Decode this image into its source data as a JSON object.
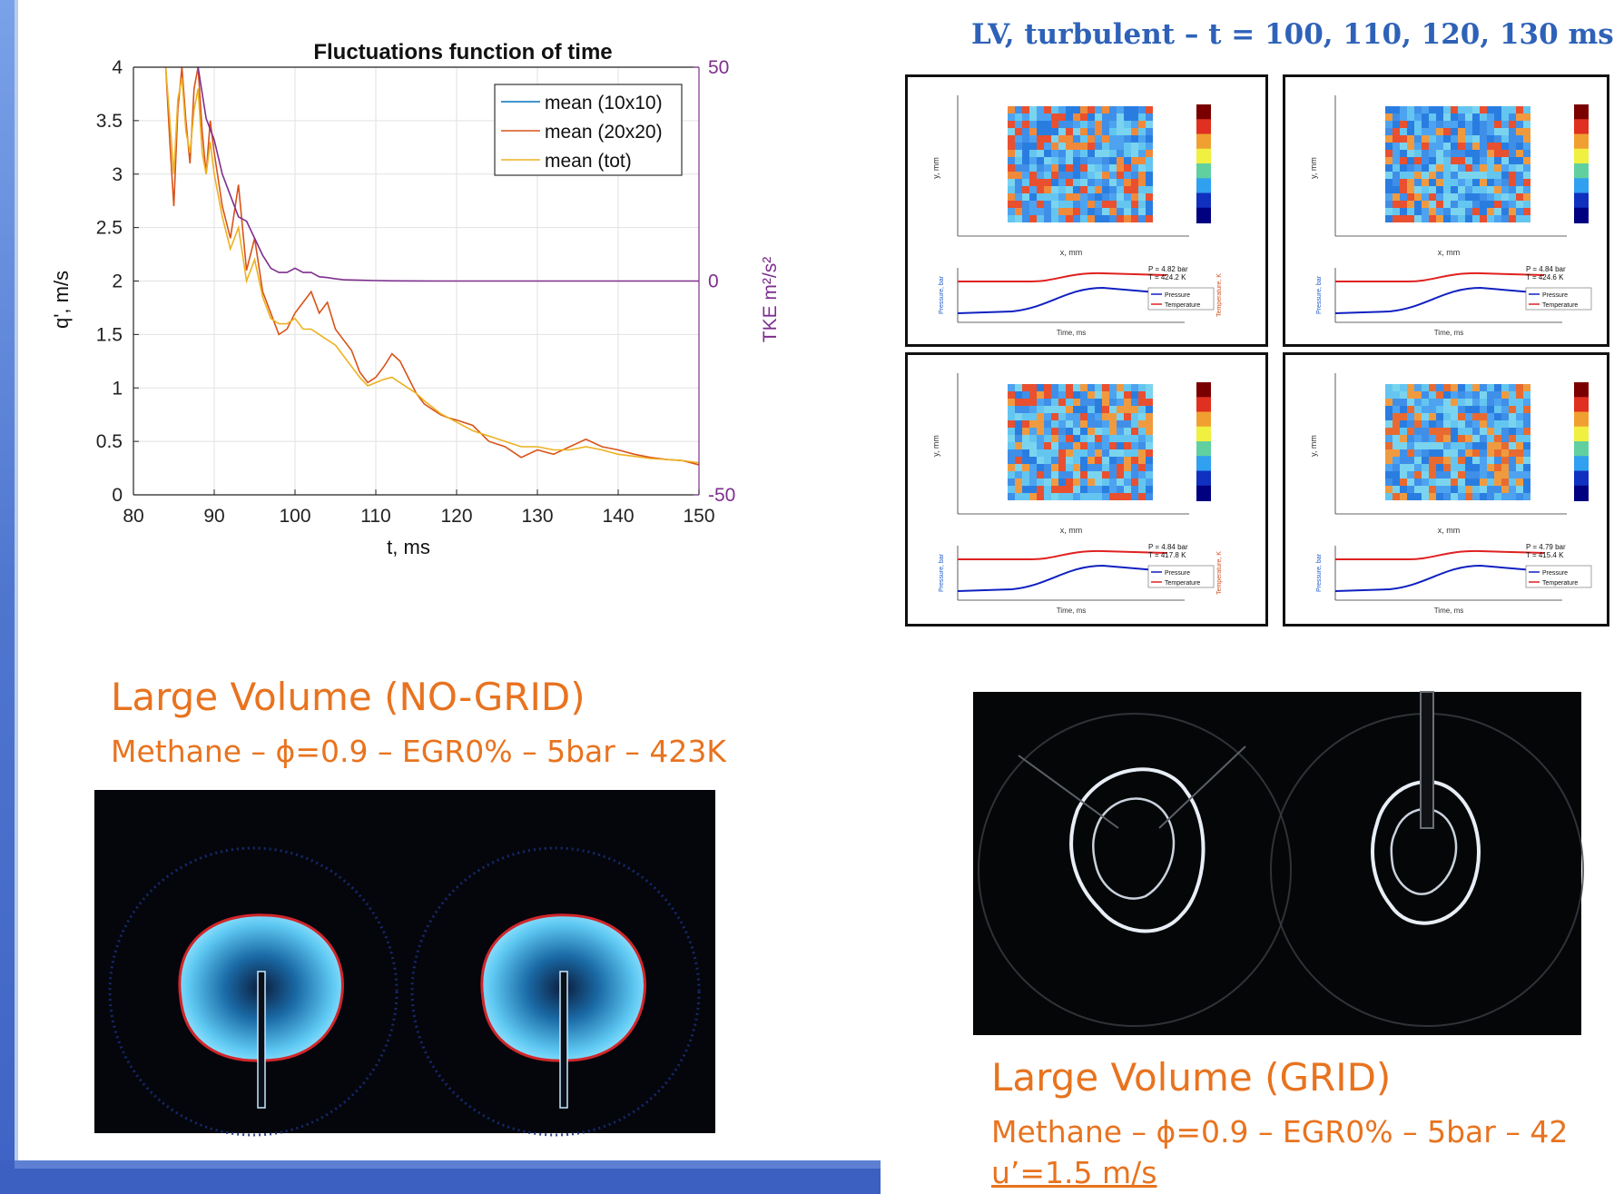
{
  "chart_data": {
    "type": "line",
    "title": "Fluctuations function of time",
    "xlabel": "t, ms",
    "ylabel": "q', m/s",
    "y2label": "TKE  m²/s²",
    "xlim": [
      80,
      150
    ],
    "ylim": [
      0,
      4
    ],
    "y2lim": [
      -50,
      50
    ],
    "xticks": [
      "80",
      "90",
      "100",
      "110",
      "120",
      "130",
      "140",
      "150"
    ],
    "yticks": [
      "0",
      "0.5",
      "1",
      "1.5",
      "2",
      "2.5",
      "3",
      "3.5",
      "4"
    ],
    "y2ticks": [
      "-50",
      "0",
      "50"
    ],
    "grid": true,
    "legend_position": "top-right",
    "legend": [
      "mean (10x10)",
      "mean (20x20)",
      "mean (tot)"
    ],
    "series": [
      {
        "name": "mean (20x20)",
        "axis": "left",
        "color": "#d95319",
        "x": [
          84,
          84.5,
          85,
          85.5,
          86,
          86.5,
          87,
          87.5,
          88,
          88.5,
          89,
          89.5,
          90,
          91,
          92,
          93,
          94,
          95,
          96,
          97,
          98,
          99,
          100,
          101,
          102,
          103,
          104,
          105,
          106,
          107,
          108,
          109,
          110,
          111,
          112,
          113,
          114,
          115,
          116,
          117,
          118,
          119,
          120,
          122,
          124,
          126,
          128,
          130,
          132,
          134,
          136,
          138,
          140,
          142,
          144,
          146,
          148,
          150
        ],
        "y": [
          4.0,
          3.3,
          2.7,
          3.6,
          4.0,
          3.5,
          3.1,
          3.8,
          4.0,
          3.4,
          3.0,
          3.5,
          3.2,
          2.7,
          2.4,
          2.9,
          2.1,
          2.4,
          1.9,
          1.7,
          1.5,
          1.55,
          1.7,
          1.8,
          1.9,
          1.7,
          1.8,
          1.55,
          1.45,
          1.35,
          1.15,
          1.05,
          1.1,
          1.2,
          1.32,
          1.25,
          1.1,
          0.95,
          0.85,
          0.8,
          0.75,
          0.72,
          0.7,
          0.65,
          0.5,
          0.45,
          0.35,
          0.42,
          0.38,
          0.45,
          0.52,
          0.45,
          0.42,
          0.38,
          0.35,
          0.33,
          0.32,
          0.28
        ]
      },
      {
        "name": "mean (tot)",
        "axis": "left",
        "color": "#edb120",
        "x": [
          84,
          84.5,
          85,
          85.5,
          86,
          86.5,
          87,
          87.5,
          88,
          88.5,
          89,
          89.5,
          90,
          91,
          92,
          93,
          94,
          95,
          96,
          97,
          98,
          99,
          100,
          101,
          102,
          103,
          104,
          105,
          106,
          107,
          108,
          109,
          110,
          111,
          112,
          113,
          114,
          115,
          116,
          117,
          118,
          119,
          120,
          122,
          124,
          126,
          128,
          130,
          132,
          134,
          136,
          138,
          140,
          142,
          144,
          146,
          148,
          150
        ],
        "y": [
          4.0,
          3.5,
          3.0,
          3.7,
          3.9,
          3.4,
          3.2,
          3.6,
          3.8,
          3.2,
          3.0,
          3.3,
          3.0,
          2.6,
          2.3,
          2.5,
          2.0,
          2.2,
          1.85,
          1.65,
          1.6,
          1.6,
          1.65,
          1.55,
          1.55,
          1.5,
          1.45,
          1.4,
          1.3,
          1.2,
          1.1,
          1.02,
          1.05,
          1.08,
          1.1,
          1.05,
          1.0,
          0.95,
          0.88,
          0.82,
          0.76,
          0.72,
          0.68,
          0.6,
          0.55,
          0.5,
          0.45,
          0.45,
          0.42,
          0.42,
          0.45,
          0.42,
          0.38,
          0.36,
          0.34,
          0.33,
          0.32,
          0.3
        ]
      },
      {
        "name": "TKE",
        "axis": "right",
        "color": "#7e2f8e",
        "x": [
          88,
          89,
          90,
          91,
          92,
          93,
          94,
          95,
          96,
          97,
          98,
          99,
          100,
          101,
          102,
          103,
          104,
          105,
          106,
          108,
          110,
          112,
          115,
          118,
          120,
          130,
          140,
          150
        ],
        "y": [
          50,
          38,
          33,
          25,
          20,
          15,
          14,
          10,
          6,
          3,
          2,
          2,
          3,
          2,
          2,
          1,
          0.8,
          0.5,
          0.3,
          0.2,
          0.1,
          0.05,
          0.02,
          0.01,
          0,
          0,
          0,
          0
        ]
      }
    ]
  },
  "right": {
    "title": "LV, turbulent – t = 100, 110, 120, 130 ms",
    "panels": [
      {
        "p": "P =  4.82 bar",
        "t": "T = 424.2 K"
      },
      {
        "p": "P =  4.84 bar",
        "t": "T = 424.6 K"
      },
      {
        "p": "P =  4.84 bar",
        "t": "T = 417.8 K"
      },
      {
        "p": "P =  4.79 bar",
        "t": "T = 415.4 K"
      }
    ],
    "legend_pressure": "Pressure",
    "legend_temperature": "Temperature",
    "xaxis_small": "x, mm",
    "yaxis_small": "y, mm",
    "time_axis": "Time, ms",
    "pressure_axis": "Pressure, bar",
    "temperature_axis": "Temperature, K"
  },
  "left_caption": {
    "title": "Large Volume (NO-GRID)",
    "subtitle": "Methane – ϕ=0.9 – EGR0% – 5bar – 423K"
  },
  "right_caption": {
    "title": "Large Volume (GRID)",
    "subtitle": "Methane – ϕ=0.9 – EGR0% – 5bar – 42",
    "extra": "u’=1.5 m/s"
  }
}
